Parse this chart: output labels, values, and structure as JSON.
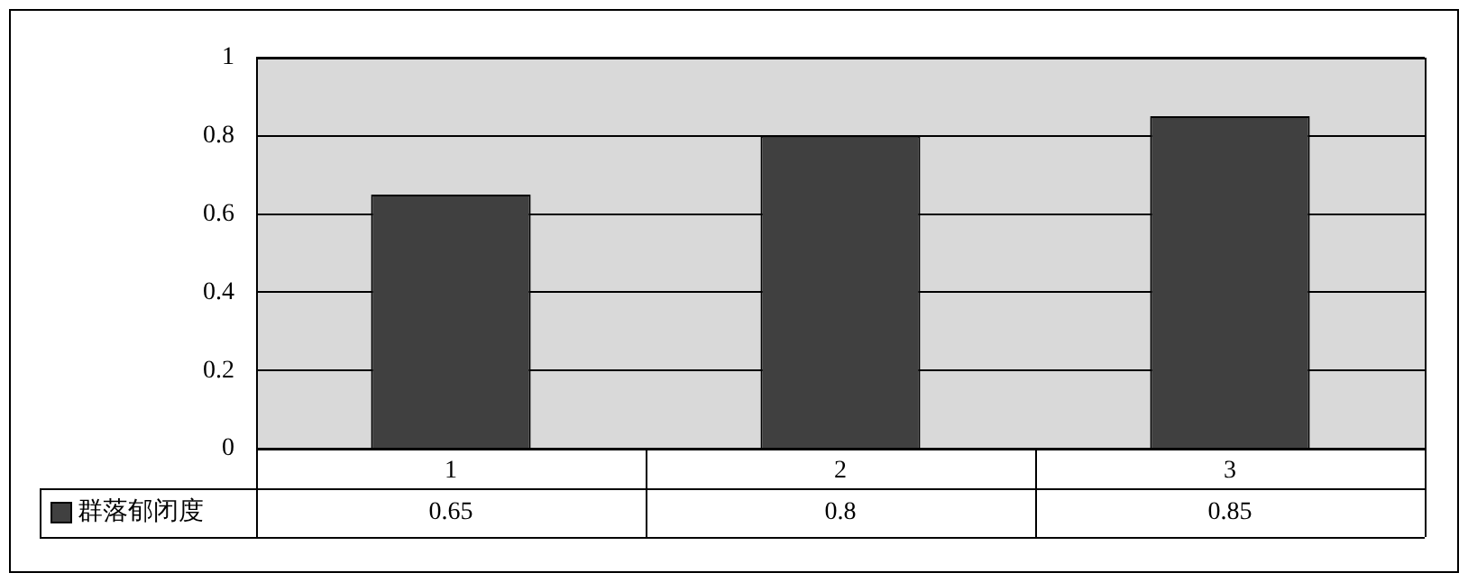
{
  "chart_data": {
    "type": "bar",
    "categories": [
      "1",
      "2",
      "3"
    ],
    "series": [
      {
        "name": "群落郁闭度",
        "color": "#404040",
        "values": [
          0.65,
          0.8,
          0.85
        ]
      }
    ],
    "ylim": [
      0,
      1
    ],
    "yticks": [
      0,
      0.2,
      0.4,
      0.6,
      0.8,
      1
    ],
    "grid": "y",
    "legend": "bottom left",
    "data_labels": true
  }
}
